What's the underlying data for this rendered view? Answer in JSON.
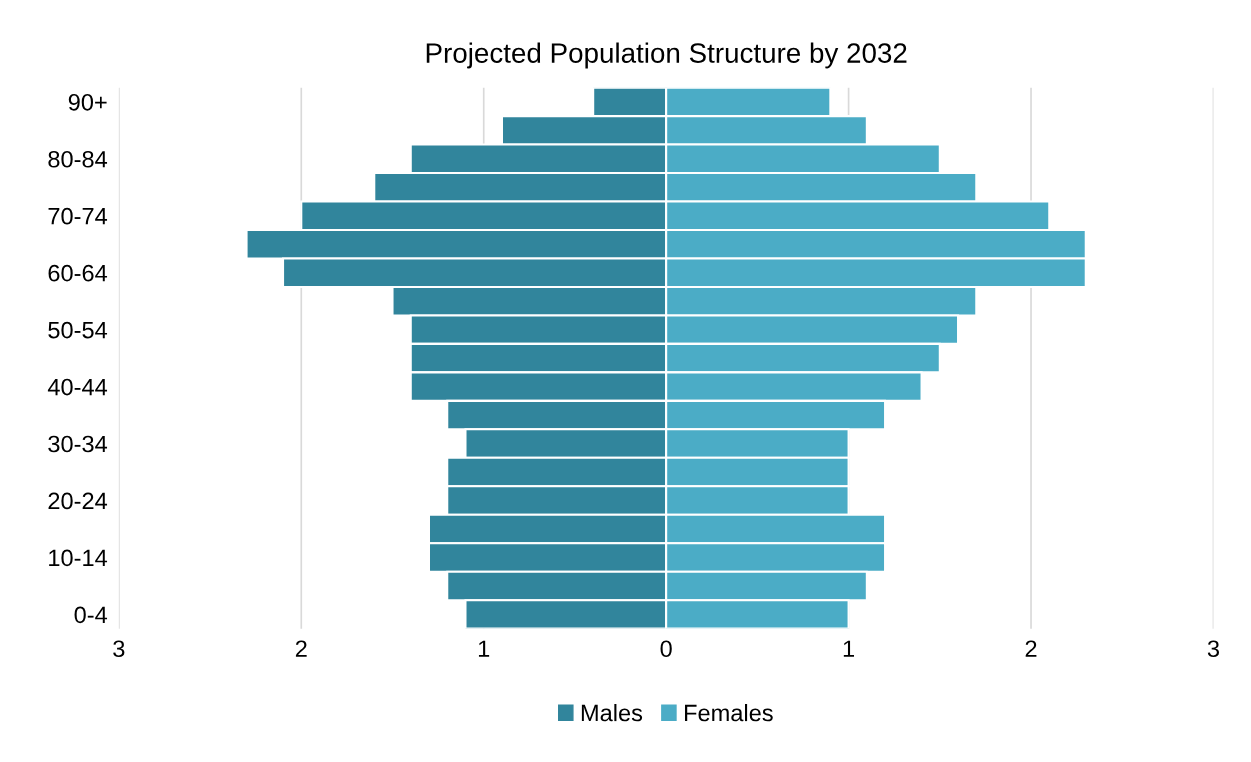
{
  "chart_data": {
    "type": "bar",
    "orientation": "horizontal",
    "title": "Projected Population Structure by 2032",
    "categories": [
      "90+",
      null,
      "80-84",
      null,
      "70-74",
      null,
      "60-64",
      null,
      "50-54",
      null,
      "40-44",
      null,
      "30-34",
      null,
      "20-24",
      null,
      "10-14",
      null,
      "0-4"
    ],
    "series": [
      {
        "name": "Males",
        "color": "#31859c",
        "values": [
          -0.4,
          -0.9,
          -1.4,
          -1.6,
          -2.0,
          -2.3,
          -2.1,
          -1.5,
          -1.4,
          -1.4,
          -1.4,
          -1.2,
          -1.1,
          -1.2,
          -1.2,
          -1.3,
          -1.3,
          -1.2,
          -1.1
        ]
      },
      {
        "name": "Females",
        "color": "#4bacc6",
        "values": [
          0.9,
          1.1,
          1.5,
          1.7,
          2.1,
          2.3,
          2.3,
          1.7,
          1.6,
          1.5,
          1.4,
          1.2,
          1.0,
          1.0,
          1.0,
          1.2,
          1.2,
          1.1,
          1.0
        ]
      }
    ],
    "xlim": [
      -3,
      3
    ],
    "xticks": [
      {
        "value": -3,
        "label": "3"
      },
      {
        "value": -2,
        "label": "2"
      },
      {
        "value": -1,
        "label": "1"
      },
      0,
      1,
      2,
      3
    ],
    "stacked": true,
    "grid": "x",
    "legend": "bottom"
  }
}
